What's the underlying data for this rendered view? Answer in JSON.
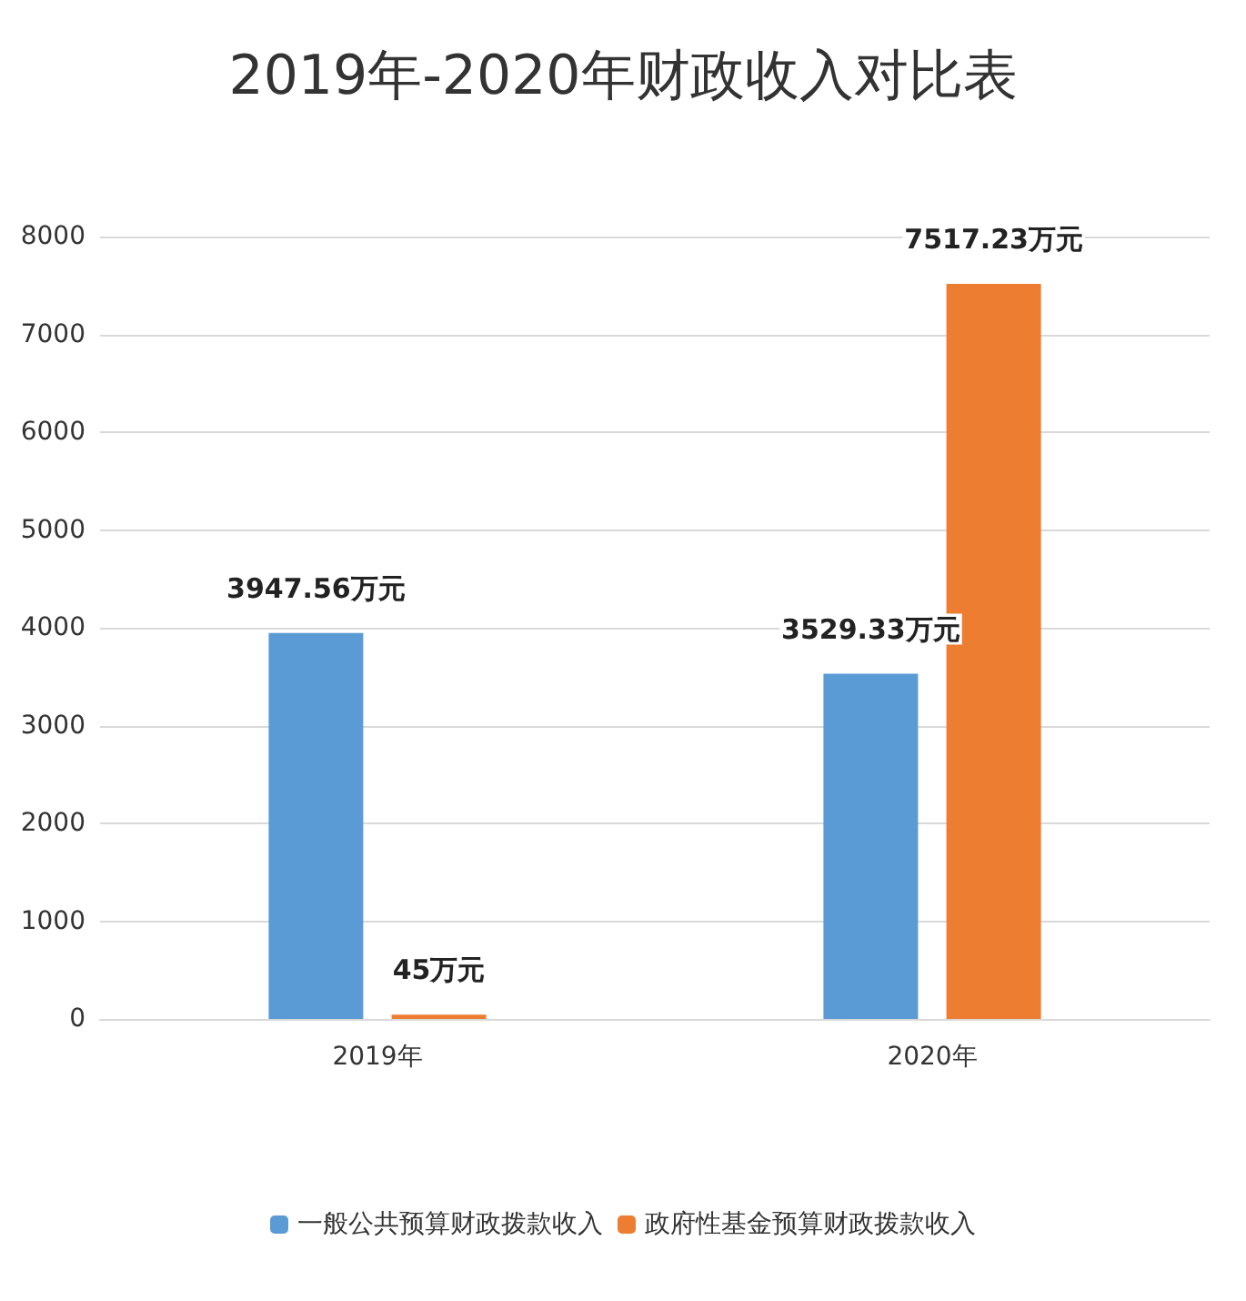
{
  "chart_data": {
    "type": "bar",
    "title": "2019年-2020年财政收入对比表",
    "categories": [
      "2019年",
      "2020年"
    ],
    "series": [
      {
        "name": "一般公共预算财政拨款收入",
        "color": "#5b9bd5",
        "values": [
          3947.56,
          3529.33
        ],
        "value_labels": [
          "3947.56万元",
          "3529.33万元"
        ]
      },
      {
        "name": "政府性基金预算财政拨款收入",
        "color": "#ed7d31",
        "values": [
          45,
          7517.23
        ],
        "value_labels": [
          "45万元",
          "7517.23万元"
        ]
      }
    ],
    "ylim": [
      0,
      8000
    ],
    "yticks": [
      0,
      1000,
      2000,
      3000,
      4000,
      5000,
      6000,
      7000,
      8000
    ],
    "grid": "y",
    "legend": "bottom"
  }
}
